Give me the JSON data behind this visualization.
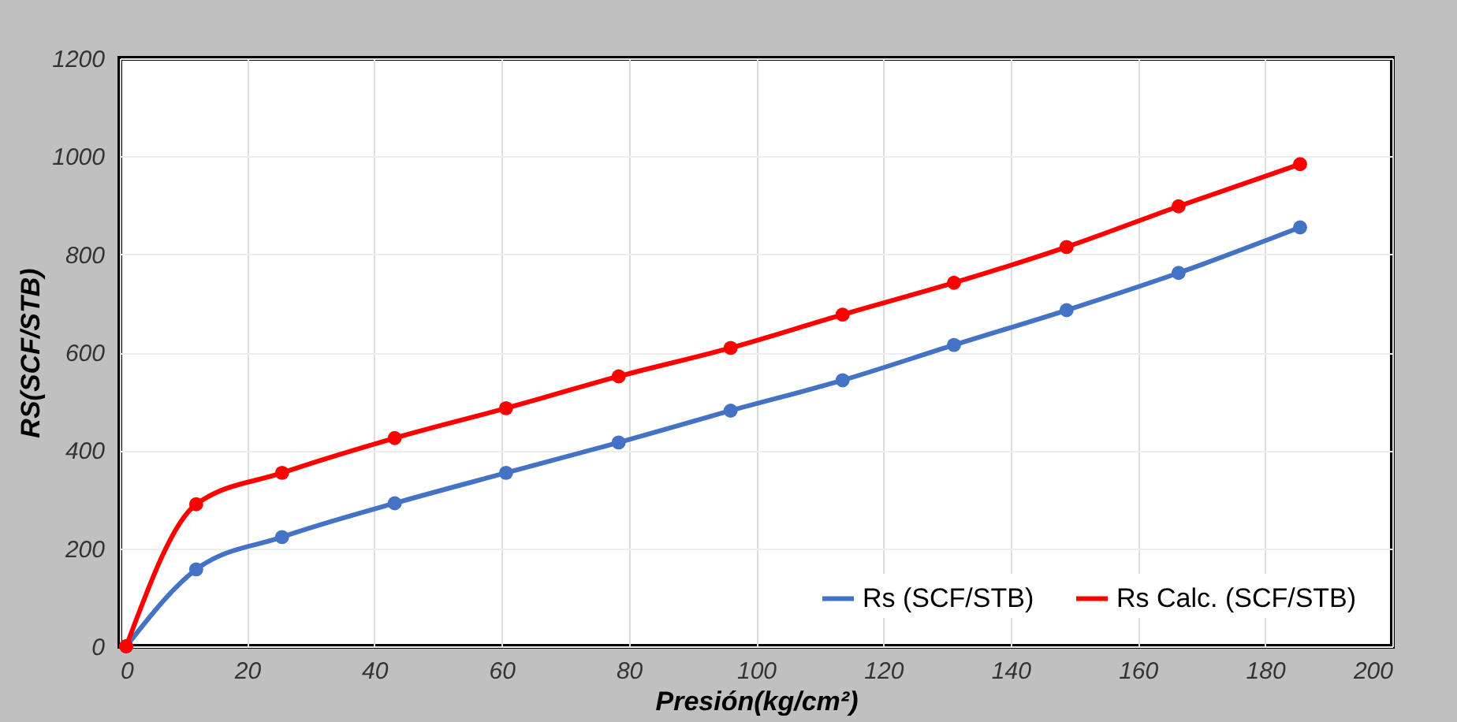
{
  "chart_data": {
    "type": "line",
    "xlabel": "Presión(kg/cm²)",
    "ylabel": "RS(SCF/STB)",
    "x": [
      1,
      12.0,
      25.5,
      43.2,
      60.7,
      78.4,
      96.0,
      113.6,
      131.1,
      148.8,
      166.4,
      185.5
    ],
    "series": [
      {
        "name": "Rs (SCF/STB)",
        "color": "#4472c4",
        "values": [
          0,
          157,
          223,
          292,
          354,
          416,
          481,
          543,
          615,
          686,
          762,
          855
        ]
      },
      {
        "name": "Rs Calc. (SCF/STB)",
        "color": "#ff0000",
        "values": [
          0,
          290,
          354,
          425,
          486,
          551,
          609,
          677,
          742,
          815,
          898,
          984
        ]
      }
    ],
    "xlim": [
      0,
      200
    ],
    "xticks": [
      0,
      20,
      40,
      60,
      80,
      100,
      120,
      140,
      160,
      180,
      200
    ],
    "ylim": [
      0,
      1200
    ],
    "yticks": [
      0,
      200,
      400,
      600,
      800,
      1000,
      1200
    ],
    "grid": true,
    "legend": "bottom right",
    "marker": "circle",
    "line_style": "solid"
  }
}
